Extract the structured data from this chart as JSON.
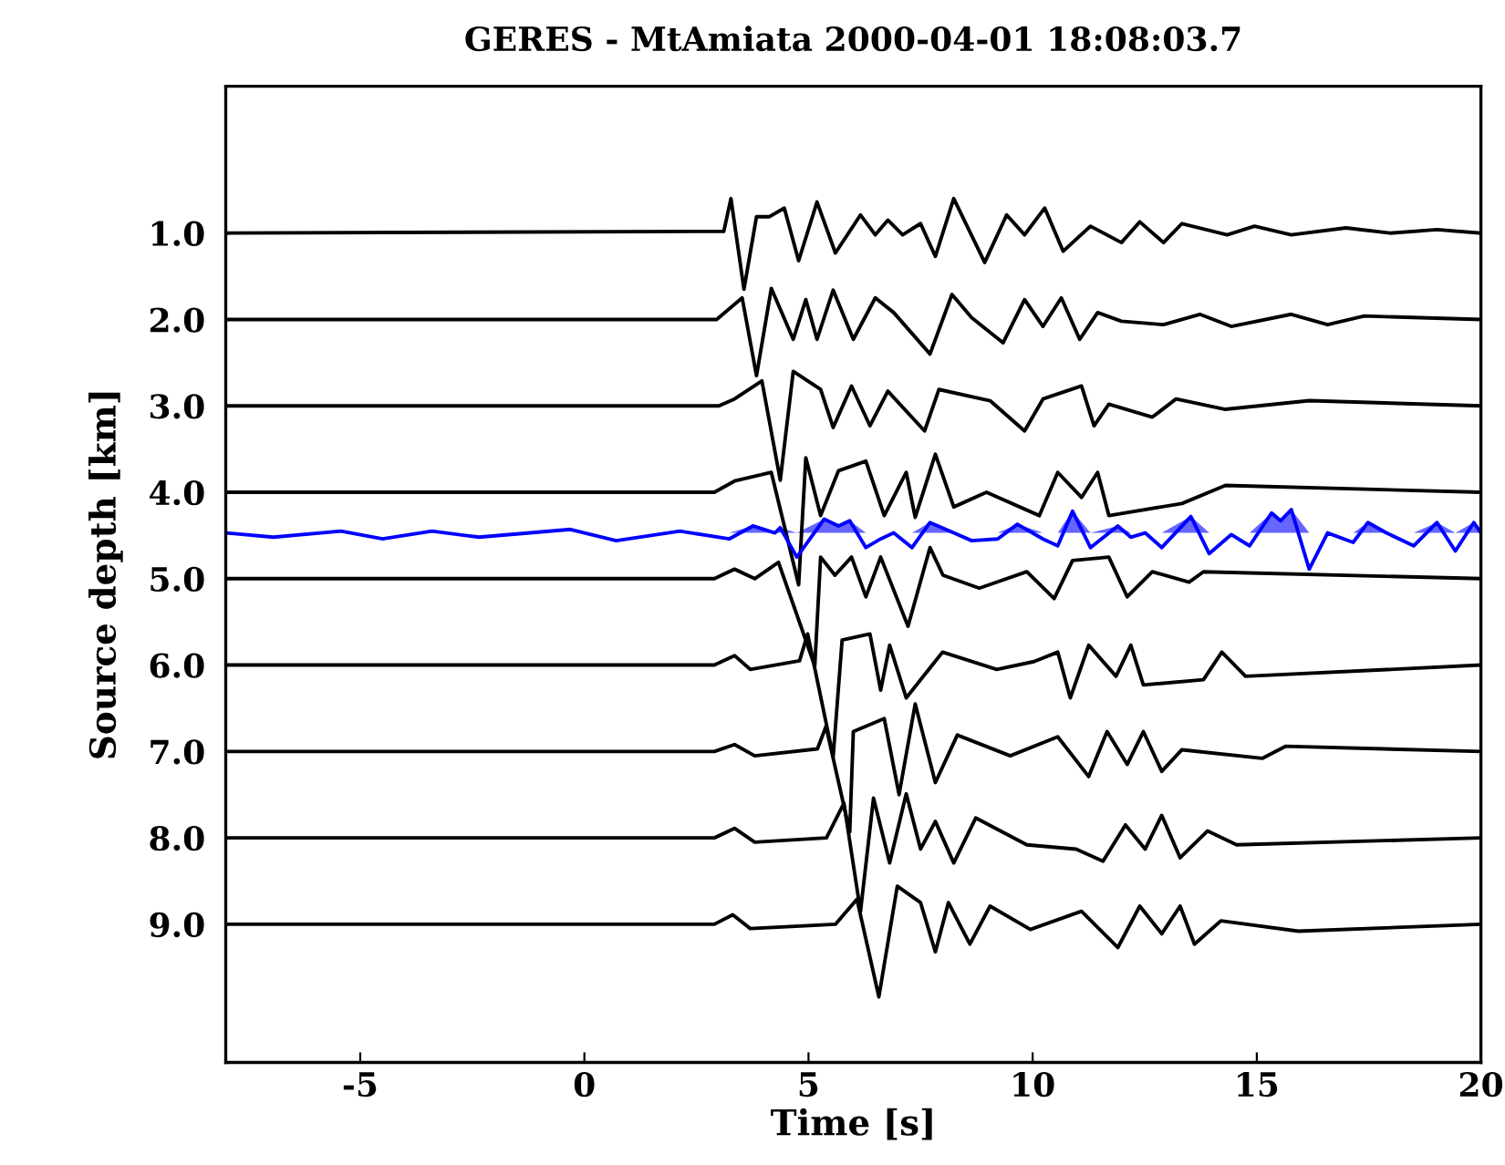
{
  "chart_data": {
    "type": "line",
    "title": "GERES - MtAmiata 2000-04-01 18:08:03.7",
    "xlabel": "Time [s]",
    "ylabel": "Source depth [km]",
    "xlim": [
      -8,
      20
    ],
    "xticks": [
      -5,
      0,
      5,
      10,
      15,
      20
    ],
    "ylim": [
      10.6,
      -0.7
    ],
    "yticks": [
      {
        "value": 1,
        "label": "1.0"
      },
      {
        "value": 2,
        "label": "2.0"
      },
      {
        "value": 3,
        "label": "3.0"
      },
      {
        "value": 4,
        "label": "4.0"
      },
      {
        "value": 5,
        "label": "5.0"
      },
      {
        "value": 6,
        "label": "6.0"
      },
      {
        "value": 7,
        "label": "7.0"
      },
      {
        "value": 8,
        "label": "8.0"
      },
      {
        "value": 9,
        "label": "9.0"
      }
    ],
    "grid": false,
    "legend": false,
    "line_style": "solid",
    "marker": "none",
    "series": [
      {
        "color": "#000000",
        "x": [
          -8,
          3.11,
          3.27,
          3.56,
          3.84,
          4.13,
          4.46,
          4.78,
          5.19,
          5.6,
          6.16,
          6.49,
          6.77,
          7.1,
          7.5,
          7.83,
          8.24,
          8.93,
          9.42,
          9.82,
          10.27,
          10.68,
          11.29,
          11.98,
          12.39,
          12.92,
          13.33,
          14.34,
          14.95,
          15.77,
          16.99,
          17.97,
          19.02,
          20
        ],
        "values": [
          1.0,
          0.98,
          0.6,
          1.65,
          0.81,
          0.81,
          0.71,
          1.32,
          0.64,
          1.23,
          0.79,
          1.02,
          0.85,
          1.02,
          0.89,
          1.27,
          0.6,
          1.34,
          0.79,
          1.02,
          0.71,
          1.21,
          0.92,
          1.11,
          0.87,
          1.11,
          0.89,
          1.02,
          0.92,
          1.02,
          0.94,
          1.0,
          0.96,
          1.0
        ]
      },
      {
        "color": "#000000",
        "x": [
          -8,
          2.95,
          3.52,
          3.84,
          4.17,
          4.66,
          4.94,
          5.19,
          5.55,
          6.0,
          6.49,
          6.9,
          7.71,
          8.2,
          8.64,
          9.34,
          9.82,
          10.23,
          10.64,
          11.05,
          11.45,
          11.98,
          12.92,
          13.73,
          14.43,
          15.77,
          16.58,
          17.4,
          20
        ],
        "values": [
          2.0,
          2.0,
          1.75,
          2.65,
          1.64,
          2.23,
          1.77,
          2.23,
          1.66,
          2.23,
          1.75,
          1.92,
          2.4,
          1.71,
          1.98,
          2.27,
          1.77,
          2.08,
          1.75,
          2.23,
          1.92,
          2.02,
          2.06,
          1.94,
          2.08,
          1.94,
          2.06,
          1.96,
          2.0
        ]
      },
      {
        "color": "#000000",
        "x": [
          -8,
          3.0,
          3.35,
          3.96,
          4.37,
          4.66,
          5.27,
          5.55,
          5.96,
          6.37,
          6.77,
          7.59,
          7.91,
          9.05,
          9.82,
          10.23,
          11.09,
          11.37,
          11.7,
          12.67,
          13.2,
          14.3,
          16.17,
          20
        ],
        "values": [
          3.0,
          3.0,
          2.92,
          2.71,
          3.86,
          2.6,
          2.81,
          3.25,
          2.77,
          3.23,
          2.83,
          3.29,
          2.81,
          2.94,
          3.29,
          2.92,
          2.77,
          3.23,
          2.98,
          3.13,
          2.92,
          3.04,
          2.94,
          3.0
        ]
      },
      {
        "color": "#000000",
        "x": [
          -8,
          2.9,
          3.35,
          4.17,
          4.78,
          4.94,
          5.27,
          5.67,
          6.28,
          6.69,
          7.18,
          7.38,
          7.83,
          8.24,
          8.97,
          10.15,
          10.56,
          11.09,
          11.45,
          11.7,
          13.33,
          14.3,
          20
        ],
        "values": [
          4.0,
          4.0,
          3.87,
          3.77,
          5.07,
          3.6,
          4.27,
          3.75,
          3.64,
          4.27,
          3.77,
          4.29,
          3.56,
          4.17,
          4.0,
          4.27,
          3.77,
          4.06,
          3.77,
          4.27,
          4.13,
          3.92,
          4.0
        ]
      },
      {
        "color": "#0000ff",
        "x": [
          -8,
          -6.94,
          -5.43,
          -4.5,
          -3.4,
          -2.35,
          -0.31,
          0.71,
          2.13,
          3.23,
          3.76,
          4.25,
          4.37,
          4.74,
          5.35,
          5.67,
          5.92,
          6.28,
          6.61,
          6.9,
          7.31,
          7.71,
          8.24,
          8.64,
          9.22,
          9.66,
          10.23,
          10.56,
          10.89,
          11.29,
          11.9,
          12.19,
          12.51,
          12.88,
          13.53,
          13.94,
          14.43,
          14.84,
          15.33,
          15.53,
          15.77,
          16.17,
          16.58,
          17.15,
          17.48,
          17.89,
          18.5,
          19.02,
          19.43,
          19.84,
          20
        ],
        "values": [
          4.47,
          4.52,
          4.45,
          4.54,
          4.45,
          4.52,
          4.43,
          4.56,
          4.45,
          4.54,
          4.39,
          4.47,
          4.41,
          4.75,
          4.31,
          4.39,
          4.33,
          4.64,
          4.54,
          4.47,
          4.64,
          4.35,
          4.47,
          4.56,
          4.54,
          4.37,
          4.54,
          4.62,
          4.22,
          4.64,
          4.39,
          4.52,
          4.47,
          4.64,
          4.28,
          4.71,
          4.49,
          4.62,
          4.24,
          4.33,
          4.2,
          4.89,
          4.47,
          4.58,
          4.35,
          4.47,
          4.62,
          4.35,
          4.68,
          4.35,
          4.47
        ],
        "lower": [
          4.47,
          4.47,
          4.47,
          4.47,
          4.47,
          4.47,
          4.47,
          4.47,
          4.47,
          4.47,
          4.47,
          4.47,
          4.47,
          4.47,
          4.47,
          4.47,
          4.47,
          4.47,
          4.47,
          4.47,
          4.47,
          4.47,
          4.47,
          4.47,
          4.47,
          4.47,
          4.47,
          4.47,
          4.47,
          4.47,
          4.47,
          4.47,
          4.47,
          4.47,
          4.47,
          4.47,
          4.47,
          4.47,
          4.47,
          4.47,
          4.47,
          4.47,
          4.47,
          4.47,
          4.47,
          4.47,
          4.47,
          4.47,
          4.47,
          4.47,
          4.47
        ],
        "upper": [
          4.47,
          4.47,
          4.47,
          4.47,
          4.47,
          4.47,
          4.47,
          4.47,
          4.47,
          4.47,
          4.39,
          4.47,
          4.41,
          4.47,
          4.31,
          4.39,
          4.33,
          4.47,
          4.47,
          4.47,
          4.47,
          4.35,
          4.47,
          4.47,
          4.47,
          4.37,
          4.47,
          4.47,
          4.22,
          4.47,
          4.39,
          4.47,
          4.47,
          4.47,
          4.28,
          4.47,
          4.47,
          4.47,
          4.24,
          4.33,
          4.2,
          4.47,
          4.47,
          4.47,
          4.35,
          4.47,
          4.47,
          4.35,
          4.47,
          4.35,
          4.47
        ]
      },
      {
        "color": "#000000",
        "x": [
          -8,
          2.9,
          3.35,
          3.8,
          4.33,
          5.14,
          5.27,
          5.59,
          5.96,
          6.28,
          6.61,
          7.22,
          7.71,
          8.0,
          8.81,
          9.87,
          10.48,
          10.89,
          11.7,
          12.11,
          12.67,
          13.49,
          13.81,
          20
        ],
        "values": [
          5.0,
          5.0,
          4.89,
          5.0,
          4.81,
          6.01,
          4.75,
          4.96,
          4.75,
          5.21,
          4.75,
          5.55,
          4.64,
          4.96,
          5.11,
          4.92,
          5.23,
          4.79,
          4.75,
          5.21,
          4.92,
          5.04,
          4.92,
          5.0
        ]
      },
      {
        "color": "#000000",
        "x": [
          -8,
          2.9,
          3.35,
          3.7,
          4.8,
          4.98,
          5.55,
          5.75,
          6.37,
          6.61,
          6.81,
          7.18,
          7.99,
          9.2,
          10.03,
          10.56,
          10.84,
          11.25,
          11.86,
          12.19,
          12.47,
          13.81,
          14.22,
          14.75,
          20
        ],
        "values": [
          6.0,
          6.0,
          5.89,
          6.05,
          5.95,
          5.64,
          7.06,
          5.71,
          5.64,
          6.29,
          5.77,
          6.38,
          5.85,
          6.05,
          5.96,
          5.85,
          6.38,
          5.77,
          6.13,
          5.77,
          6.23,
          6.17,
          5.85,
          6.13,
          6.0
        ]
      },
      {
        "color": "#000000",
        "x": [
          -8,
          2.9,
          3.35,
          3.8,
          5.2,
          5.39,
          5.92,
          6.0,
          6.69,
          7.02,
          7.38,
          7.83,
          8.32,
          9.5,
          10.56,
          11.25,
          11.66,
          12.11,
          12.47,
          12.88,
          13.33,
          15.12,
          15.64,
          20
        ],
        "values": [
          7.0,
          7.0,
          6.92,
          7.05,
          6.97,
          6.71,
          7.93,
          6.77,
          6.62,
          7.5,
          6.45,
          7.36,
          6.81,
          7.05,
          6.83,
          7.29,
          6.77,
          7.15,
          6.77,
          7.23,
          6.98,
          7.08,
          6.94,
          7.0
        ]
      },
      {
        "color": "#000000",
        "x": [
          -8,
          2.9,
          3.35,
          3.8,
          5.4,
          5.79,
          6.16,
          6.45,
          6.81,
          7.18,
          7.5,
          7.83,
          8.24,
          8.73,
          9.87,
          10.97,
          11.57,
          12.07,
          12.51,
          12.88,
          13.29,
          13.9,
          14.55,
          20
        ],
        "values": [
          8.0,
          8.0,
          7.89,
          8.05,
          8.0,
          7.6,
          8.85,
          7.54,
          8.29,
          7.49,
          8.13,
          7.81,
          8.29,
          7.77,
          8.08,
          8.13,
          8.27,
          7.85,
          8.13,
          7.74,
          8.23,
          7.92,
          8.08,
          8.0
        ]
      },
      {
        "color": "#000000",
        "x": [
          -8,
          2.9,
          3.31,
          3.7,
          5.6,
          6.08,
          6.57,
          6.98,
          7.5,
          7.83,
          8.12,
          8.6,
          9.05,
          9.95,
          11.09,
          11.9,
          12.39,
          12.88,
          13.29,
          13.61,
          14.2,
          15.93,
          20
        ],
        "values": [
          9.0,
          9.0,
          8.89,
          9.05,
          9.0,
          8.71,
          9.84,
          8.56,
          8.75,
          9.32,
          8.75,
          9.23,
          8.79,
          9.06,
          8.85,
          9.27,
          8.79,
          9.11,
          8.79,
          9.23,
          8.96,
          9.08,
          9.0
        ]
      }
    ]
  }
}
